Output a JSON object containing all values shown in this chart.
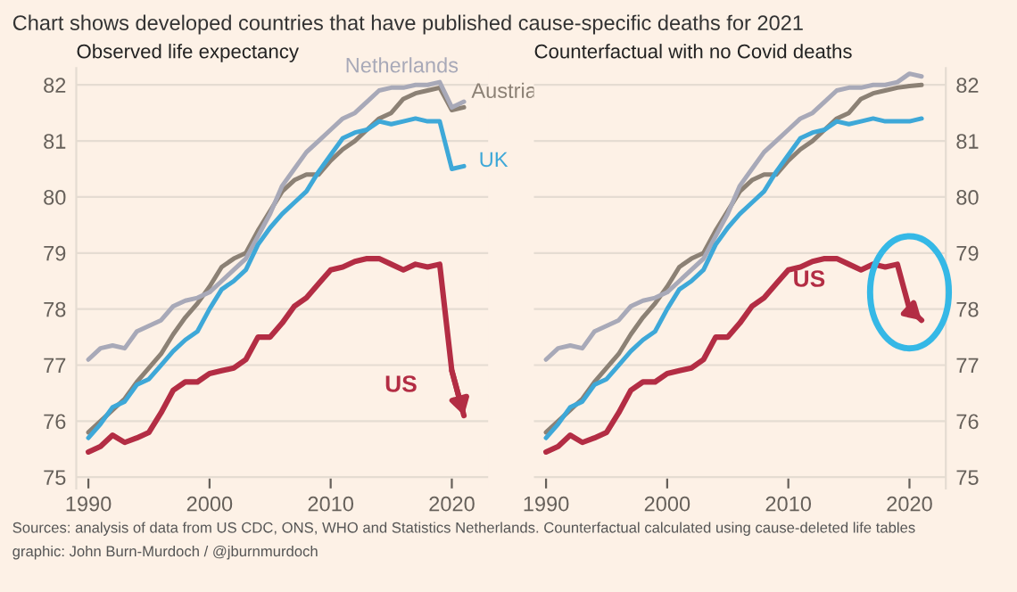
{
  "chart_data": [
    {
      "type": "line",
      "title": "Observed life expectancy",
      "annotations": [
        "Chart shows developed countries that have published cause-specific deaths for 2021",
        "Sources: analysis of data from US CDC, ONS, WHO and Statistics Netherlands. Counterfactual calculated using cause-deleted life tables",
        "graphic: John Burn-Murdoch / @jburnmurdoch"
      ],
      "x": [
        1990,
        1991,
        1992,
        1993,
        1994,
        1995,
        1996,
        1997,
        1998,
        1999,
        2000,
        2001,
        2002,
        2003,
        2004,
        2005,
        2006,
        2007,
        2008,
        2009,
        2010,
        2011,
        2012,
        2013,
        2014,
        2015,
        2016,
        2017,
        2018,
        2019,
        2020,
        2021
      ],
      "xlim": [
        1989,
        2023
      ],
      "xticks": [
        1990,
        2000,
        2010,
        2020
      ],
      "ylim": [
        74.8,
        82.3
      ],
      "yticks": [
        75,
        76,
        77,
        78,
        79,
        80,
        81,
        82
      ],
      "grid": "y",
      "series": [
        {
          "name": "Austria",
          "color": "#8c8175",
          "values": [
            75.8,
            76.0,
            76.2,
            76.4,
            76.7,
            76.95,
            77.2,
            77.55,
            77.85,
            78.1,
            78.4,
            78.75,
            78.9,
            79.0,
            79.4,
            79.75,
            80.1,
            80.3,
            80.4,
            80.4,
            80.65,
            80.85,
            81.0,
            81.2,
            81.4,
            81.5,
            81.75,
            81.85,
            81.9,
            81.95,
            81.55,
            81.6
          ]
        },
        {
          "name": "Netherlands",
          "color": "#a8a9b8",
          "values": [
            77.1,
            77.3,
            77.35,
            77.3,
            77.6,
            77.7,
            77.8,
            78.05,
            78.15,
            78.2,
            78.3,
            78.5,
            78.7,
            78.9,
            79.3,
            79.7,
            80.2,
            80.5,
            80.8,
            81.0,
            81.2,
            81.4,
            81.5,
            81.7,
            81.9,
            81.95,
            81.95,
            82.0,
            82.0,
            82.05,
            81.6,
            81.7
          ]
        },
        {
          "name": "UK",
          "color": "#3ea8d8",
          "values": [
            75.7,
            75.95,
            76.25,
            76.35,
            76.65,
            76.75,
            77.0,
            77.25,
            77.45,
            77.6,
            78.0,
            78.35,
            78.5,
            78.7,
            79.15,
            79.45,
            79.7,
            79.9,
            80.1,
            80.45,
            80.75,
            81.05,
            81.15,
            81.2,
            81.35,
            81.3,
            81.35,
            81.4,
            81.35,
            81.35,
            80.5,
            80.55
          ]
        },
        {
          "name": "US",
          "color": "#b32d44",
          "values": [
            75.45,
            75.55,
            75.75,
            75.62,
            75.7,
            75.8,
            76.15,
            76.55,
            76.7,
            76.7,
            76.85,
            76.9,
            76.95,
            77.1,
            77.5,
            77.5,
            77.75,
            78.05,
            78.2,
            78.45,
            78.7,
            78.75,
            78.85,
            78.9,
            78.9,
            78.8,
            78.7,
            78.8,
            78.75,
            78.8,
            76.9,
            76.1
          ]
        }
      ]
    },
    {
      "type": "line",
      "title": "Counterfactual with no Covid deaths",
      "x": [
        1990,
        1991,
        1992,
        1993,
        1994,
        1995,
        1996,
        1997,
        1998,
        1999,
        2000,
        2001,
        2002,
        2003,
        2004,
        2005,
        2006,
        2007,
        2008,
        2009,
        2010,
        2011,
        2012,
        2013,
        2014,
        2015,
        2016,
        2017,
        2018,
        2019,
        2020,
        2021
      ],
      "xlim": [
        1989,
        2023
      ],
      "xticks": [
        1990,
        2000,
        2010,
        2020
      ],
      "ylim": [
        74.8,
        82.3
      ],
      "yticks": [
        75,
        76,
        77,
        78,
        79,
        80,
        81,
        82
      ],
      "grid": "y",
      "series": [
        {
          "color": "#8c8175",
          "values": [
            75.8,
            76.0,
            76.2,
            76.4,
            76.7,
            76.95,
            77.2,
            77.55,
            77.85,
            78.1,
            78.4,
            78.75,
            78.9,
            79.0,
            79.4,
            79.75,
            80.1,
            80.3,
            80.4,
            80.4,
            80.65,
            80.85,
            81.0,
            81.2,
            81.4,
            81.5,
            81.75,
            81.85,
            81.9,
            81.95,
            81.98,
            82.0
          ]
        },
        {
          "color": "#a8a9b8",
          "values": [
            77.1,
            77.3,
            77.35,
            77.3,
            77.6,
            77.7,
            77.8,
            78.05,
            78.15,
            78.2,
            78.3,
            78.5,
            78.7,
            78.9,
            79.3,
            79.7,
            80.2,
            80.5,
            80.8,
            81.0,
            81.2,
            81.4,
            81.5,
            81.7,
            81.9,
            81.95,
            81.95,
            82.0,
            82.0,
            82.05,
            82.2,
            82.15
          ]
        },
        {
          "color": "#3ea8d8",
          "values": [
            75.7,
            75.95,
            76.25,
            76.35,
            76.65,
            76.75,
            77.0,
            77.25,
            77.45,
            77.6,
            78.0,
            78.35,
            78.5,
            78.7,
            79.15,
            79.45,
            79.7,
            79.9,
            80.1,
            80.45,
            80.75,
            81.05,
            81.15,
            81.2,
            81.35,
            81.3,
            81.35,
            81.4,
            81.35,
            81.35,
            81.35,
            81.4
          ]
        },
        {
          "name": "US",
          "color": "#b32d44",
          "values": [
            75.45,
            75.55,
            75.75,
            75.62,
            75.7,
            75.8,
            76.15,
            76.55,
            76.7,
            76.7,
            76.85,
            76.9,
            76.95,
            77.1,
            77.5,
            77.5,
            77.75,
            78.05,
            78.2,
            78.45,
            78.7,
            78.75,
            78.85,
            78.9,
            78.9,
            78.8,
            78.7,
            78.8,
            78.75,
            78.8,
            78.0,
            77.8
          ]
        }
      ]
    }
  ]
}
